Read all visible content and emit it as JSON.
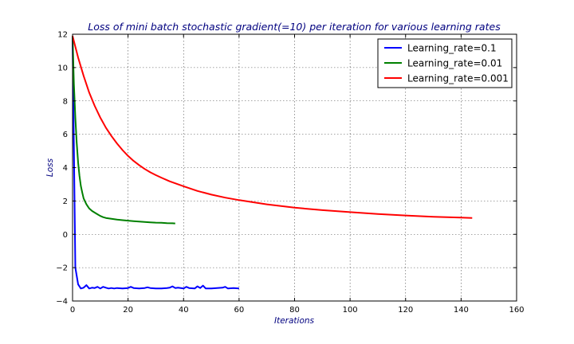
{
  "chart_data": {
    "type": "line",
    "title": "Loss of mini batch stochastic gradient(=10) per iteration for various learning rates",
    "xlabel": "Iterations",
    "ylabel": "Loss",
    "xlim": [
      0,
      160
    ],
    "ylim": [
      -4,
      12
    ],
    "x_ticks": [
      0,
      20,
      40,
      60,
      80,
      100,
      120,
      140,
      160
    ],
    "y_ticks": [
      -4,
      -2,
      0,
      2,
      4,
      6,
      8,
      10,
      12
    ],
    "grid": true,
    "legend_position": "top-right",
    "series": [
      {
        "name": "Learning_rate=0.1",
        "color": "#0000ff",
        "x": [
          0,
          1,
          2,
          3,
          4,
          5,
          6,
          7,
          8,
          9,
          10,
          11,
          12,
          13,
          14,
          15,
          16,
          18,
          20,
          21,
          22,
          24,
          26,
          27,
          28,
          30,
          32,
          34,
          35,
          36,
          37,
          38,
          40,
          41,
          42,
          44,
          45,
          46,
          47,
          48,
          50,
          52,
          54,
          55,
          56,
          58,
          60
        ],
        "y": [
          11.9,
          -2.0,
          -3.0,
          -3.25,
          -3.2,
          -3.05,
          -3.25,
          -3.2,
          -3.22,
          -3.15,
          -3.25,
          -3.15,
          -3.2,
          -3.25,
          -3.22,
          -3.25,
          -3.22,
          -3.25,
          -3.22,
          -3.15,
          -3.22,
          -3.25,
          -3.22,
          -3.18,
          -3.22,
          -3.25,
          -3.25,
          -3.22,
          -3.2,
          -3.12,
          -3.22,
          -3.2,
          -3.25,
          -3.15,
          -3.22,
          -3.25,
          -3.12,
          -3.22,
          -3.08,
          -3.25,
          -3.25,
          -3.22,
          -3.2,
          -3.15,
          -3.25,
          -3.22,
          -3.25
        ]
      },
      {
        "name": "Learning_rate=0.01",
        "color": "#008000",
        "x": [
          0,
          0.5,
          1,
          1.5,
          2,
          2.5,
          3,
          3.5,
          4,
          5,
          6,
          7,
          8,
          9,
          10,
          11,
          12,
          14,
          16,
          18,
          20,
          22,
          24,
          26,
          28,
          30,
          32,
          34,
          36,
          37
        ],
        "y": [
          11.9,
          9.0,
          7.0,
          5.5,
          4.3,
          3.5,
          2.9,
          2.5,
          2.15,
          1.8,
          1.55,
          1.4,
          1.3,
          1.2,
          1.1,
          1.03,
          0.98,
          0.93,
          0.88,
          0.85,
          0.82,
          0.79,
          0.76,
          0.74,
          0.72,
          0.7,
          0.69,
          0.67,
          0.66,
          0.65
        ]
      },
      {
        "name": "Learning_rate=0.001",
        "color": "#ff0000",
        "x": [
          0,
          2,
          4,
          6,
          8,
          10,
          12,
          14,
          16,
          18,
          20,
          22,
          24,
          26,
          28,
          30,
          32,
          35,
          40,
          45,
          50,
          55,
          60,
          70,
          80,
          90,
          100,
          110,
          120,
          130,
          140,
          144
        ],
        "y": [
          11.9,
          10.6,
          9.5,
          8.5,
          7.7,
          7.0,
          6.4,
          5.9,
          5.45,
          5.05,
          4.7,
          4.4,
          4.15,
          3.92,
          3.72,
          3.55,
          3.4,
          3.18,
          2.88,
          2.6,
          2.38,
          2.2,
          2.05,
          1.8,
          1.6,
          1.45,
          1.33,
          1.22,
          1.13,
          1.05,
          1.0,
          0.98
        ]
      }
    ]
  }
}
